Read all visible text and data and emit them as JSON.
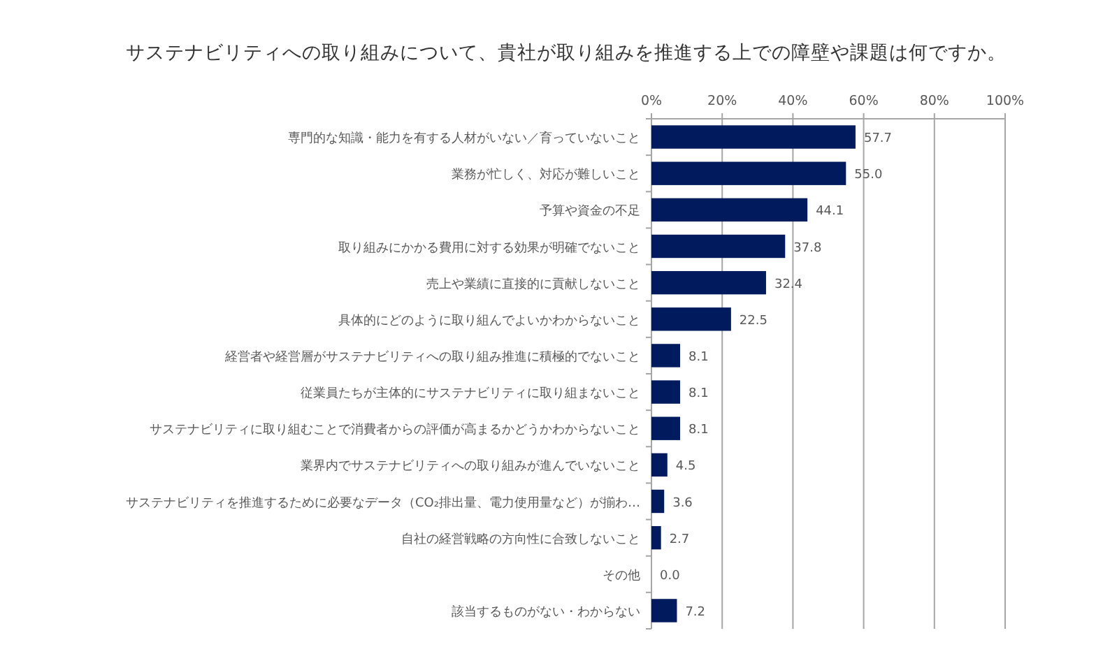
{
  "chart_data": {
    "type": "bar",
    "orientation": "horizontal",
    "title": "サステナビリティへの取り組みについて、貴社が取り組みを推進する上での障壁や課題は何ですか。",
    "categories": [
      "専門的な知識・能力を有する人材がいない／育っていないこと",
      "業務が忙しく、対応が難しいこと",
      "予算や資金の不足",
      "取り組みにかかる費用に対する効果が明確でないこと",
      "売上や業績に直接的に貢献しないこと",
      "具体的にどのように取り組んでよいかわからないこと",
      "経営者や経営層がサステナビリティへの取り組み推進に積極的でないこと",
      "従業員たちが主体的にサステナビリティに取り組まないこと",
      "サステナビリティに取り組むことで消費者からの評価が高まるかどうかわからないこと",
      "業界内でサステナビリティへの取り組みが進んでいないこと",
      "サステナビリティを推進するために必要なデータ（CO₂排出量、電力使用量など）が揃わ…",
      "自社の経営戦略の方向性に合致しないこと",
      "その他",
      "該当するものがない・わからない"
    ],
    "values": [
      57.7,
      55.0,
      44.1,
      37.8,
      32.4,
      22.5,
      8.1,
      8.1,
      8.1,
      4.5,
      3.6,
      2.7,
      0.0,
      7.2
    ],
    "value_labels": [
      "57.7",
      "55.0",
      "44.1",
      "37.8",
      "32.4",
      "22.5",
      "8.1",
      "8.1",
      "8.1",
      "4.5",
      "3.6",
      "2.7",
      "0.0",
      "7.2"
    ],
    "color": "#001a5e",
    "xlim": [
      0,
      100
    ],
    "xticks": [
      {
        "value": 0,
        "label": "0%"
      },
      {
        "value": 20,
        "label": "20%"
      },
      {
        "value": 40,
        "label": "40%"
      },
      {
        "value": 60,
        "label": "60%"
      },
      {
        "value": 80,
        "label": "80%"
      },
      {
        "value": 100,
        "label": "100%"
      }
    ],
    "grid": "x"
  }
}
